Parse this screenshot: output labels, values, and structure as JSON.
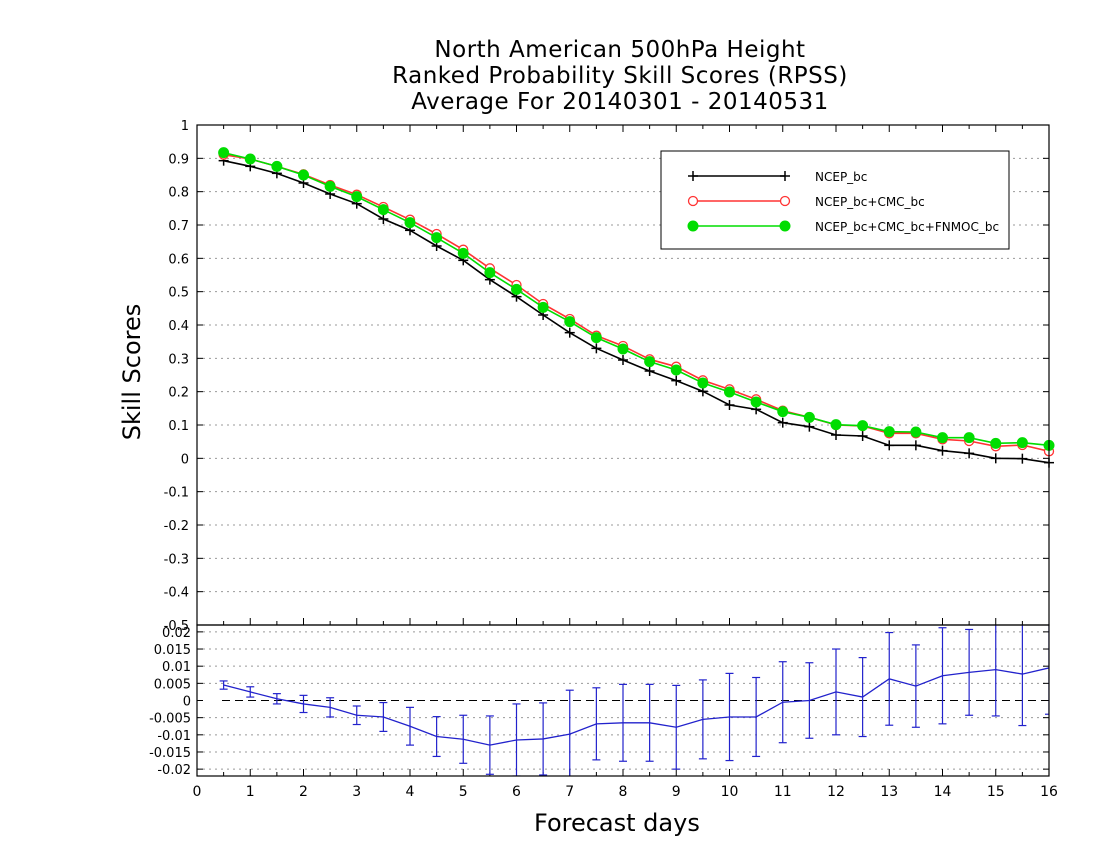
{
  "chart_data": [
    {
      "type": "line",
      "title": [
        "North American 500hPa Height",
        "Ranked Probability Skill Scores (RPSS)",
        "Average For 20140301 - 20140531"
      ],
      "xlabel": "Forecast days",
      "ylabel": "Skill Scores",
      "xlim": [
        0,
        16
      ],
      "ylim": [
        -0.5,
        1
      ],
      "yticks": [
        "1",
        "0.9",
        "0.8",
        "0.7",
        "0.6",
        "0.5",
        "0.4",
        "0.3",
        "0.2",
        "0.1",
        "0",
        "-0.1",
        "-0.2",
        "-0.3",
        "-0.4",
        "-0.5"
      ],
      "grid": true,
      "legend_position": "top-right",
      "x": [
        0.5,
        1,
        1.5,
        2,
        2.5,
        3,
        3.5,
        4,
        4.5,
        5,
        5.5,
        6,
        6.5,
        7,
        7.5,
        8,
        8.5,
        9,
        9.5,
        10,
        10.5,
        11,
        11.5,
        12,
        12.5,
        13,
        13.5,
        14,
        14.5,
        15,
        15.5,
        16
      ],
      "series": [
        {
          "name": "NCEP_bc",
          "color": "#000000",
          "marker": "plus",
          "values": [
            0.893,
            0.876,
            0.855,
            0.826,
            0.793,
            0.764,
            0.718,
            0.684,
            0.637,
            0.594,
            0.536,
            0.485,
            0.43,
            0.377,
            0.33,
            0.295,
            0.262,
            0.233,
            0.201,
            0.16,
            0.147,
            0.107,
            0.095,
            0.07,
            0.067,
            0.039,
            0.039,
            0.023,
            0.015,
            0.0,
            -0.001,
            -0.013
          ]
        },
        {
          "name": "NCEP_bc+CMC_bc",
          "color": "#ff3333",
          "marker": "open-circle",
          "values": [
            0.911,
            0.898,
            0.876,
            0.852,
            0.82,
            0.791,
            0.754,
            0.716,
            0.673,
            0.626,
            0.57,
            0.52,
            0.463,
            0.418,
            0.368,
            0.337,
            0.297,
            0.275,
            0.234,
            0.207,
            0.177,
            0.143,
            0.123,
            0.1,
            0.097,
            0.075,
            0.075,
            0.057,
            0.052,
            0.036,
            0.04,
            0.021
          ]
        },
        {
          "name": "NCEP_bc+CMC_bc+FNMOC_bc",
          "color": "#00dd00",
          "marker": "filled-circle",
          "values": [
            0.917,
            0.898,
            0.876,
            0.85,
            0.816,
            0.785,
            0.746,
            0.707,
            0.662,
            0.615,
            0.557,
            0.507,
            0.453,
            0.41,
            0.362,
            0.328,
            0.29,
            0.265,
            0.226,
            0.199,
            0.169,
            0.14,
            0.123,
            0.101,
            0.098,
            0.08,
            0.079,
            0.062,
            0.062,
            0.045,
            0.047,
            0.039
          ]
        }
      ]
    },
    {
      "type": "line",
      "xlim": [
        0,
        16
      ],
      "ylim": [
        -0.022,
        0.022
      ],
      "xticks": [
        "0",
        "1",
        "2",
        "3",
        "4",
        "5",
        "6",
        "7",
        "8",
        "9",
        "10",
        "11",
        "12",
        "13",
        "14",
        "15",
        "16"
      ],
      "yticks": [
        "0.02",
        "0.015",
        "0.01",
        "0.005",
        "0",
        "-0.005",
        "-0.01",
        "-0.015",
        "-0.02"
      ],
      "grid": true,
      "reference_line": 0,
      "x": [
        0.5,
        1,
        1.5,
        2,
        2.5,
        3,
        3.5,
        4,
        4.5,
        5,
        5.5,
        6,
        6.5,
        7,
        7.5,
        8,
        8.5,
        9,
        9.5,
        10,
        10.5,
        11,
        11.5,
        12,
        12.5,
        13,
        13.5,
        14,
        14.5,
        15,
        15.5,
        16
      ],
      "series": [
        {
          "color": "#2222cc",
          "marker": "error-bar",
          "values": [
            0.0045,
            0.0025,
            0.0005,
            -0.001,
            -0.002,
            -0.0043,
            -0.0048,
            -0.0075,
            -0.0105,
            -0.0113,
            -0.013,
            -0.0115,
            -0.0112,
            -0.0098,
            -0.0068,
            -0.0065,
            -0.0065,
            -0.0078,
            -0.0055,
            -0.0048,
            -0.0048,
            -0.0005,
            0.0,
            0.0025,
            0.001,
            0.0063,
            0.0042,
            0.0072,
            0.0082,
            0.009,
            0.0077,
            0.0095
          ],
          "error": [
            0.0012,
            0.0015,
            0.0015,
            0.0025,
            0.0028,
            0.0027,
            0.0042,
            0.0055,
            0.0058,
            0.007,
            0.0085,
            0.0105,
            0.0105,
            0.0128,
            0.0105,
            0.0112,
            0.0112,
            0.0122,
            0.0115,
            0.0127,
            0.0115,
            0.0118,
            0.011,
            0.0125,
            0.0115,
            0.0135,
            0.012,
            0.014,
            0.0125,
            0.0135,
            0.015,
            0.0135
          ]
        }
      ]
    }
  ]
}
